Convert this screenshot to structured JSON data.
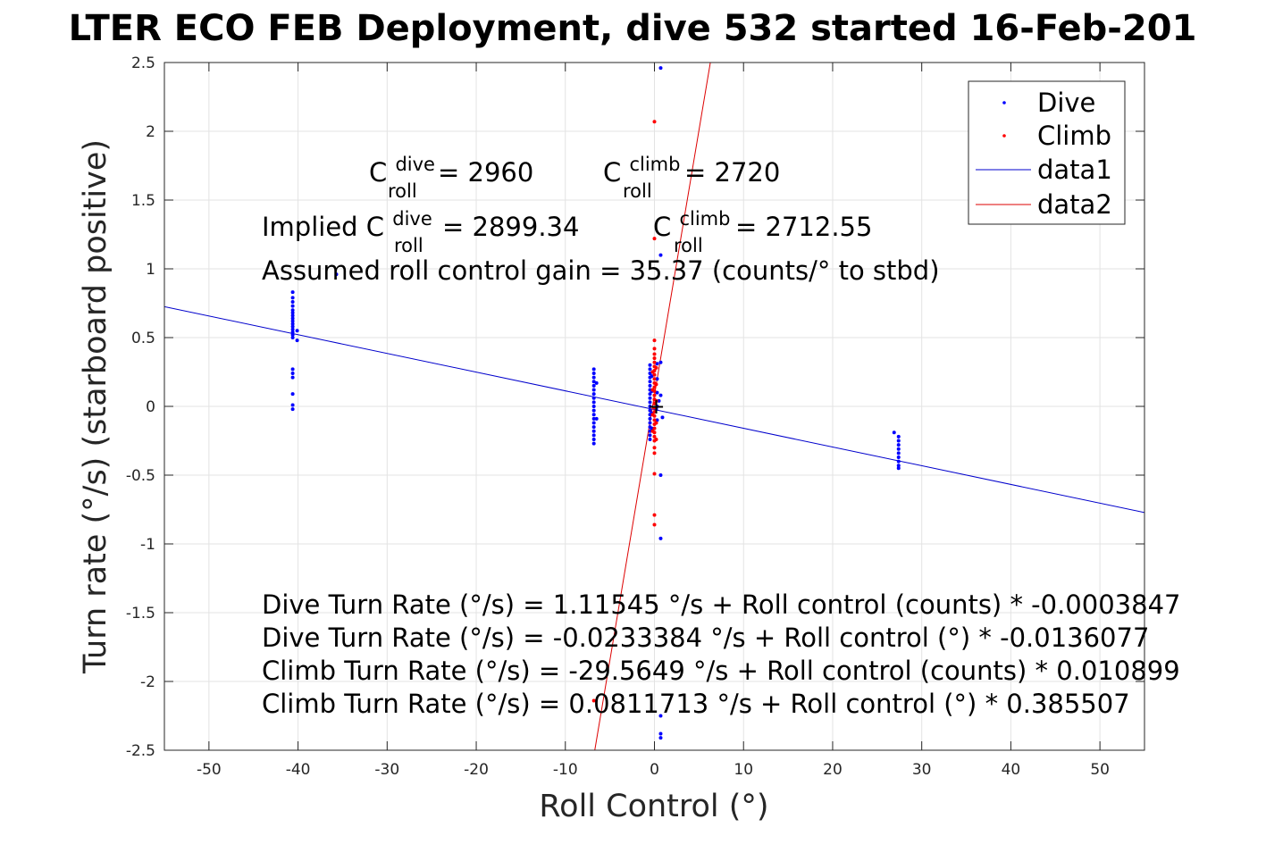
{
  "chart_data": {
    "type": "scatter",
    "title": "LTER ECO FEB Deployment, dive 532 started 16-Feb-201",
    "xlabel": "Roll Control (°)",
    "ylabel": "Turn rate (°/s) (starboard positive)",
    "xlim": [
      -55,
      55
    ],
    "ylim": [
      -2.5,
      2.5
    ],
    "xticks": [
      -50,
      -40,
      -30,
      -20,
      -10,
      0,
      10,
      20,
      30,
      40,
      50
    ],
    "yticks": [
      -2.5,
      -2,
      -1.5,
      -1,
      -0.5,
      0,
      0.5,
      1,
      1.5,
      2,
      2.5
    ],
    "grid": true,
    "legend_position": "top-right",
    "colors": {
      "dive": "#0000ff",
      "climb": "#ff0000",
      "data1": "#0000cc",
      "data2": "#dd0000",
      "marker": "#000000"
    },
    "legend": [
      {
        "label": "Dive",
        "kind": "point",
        "color": "#0000ff"
      },
      {
        "label": "Climb",
        "kind": "point",
        "color": "#ff0000"
      },
      {
        "label": "data1",
        "kind": "line",
        "color": "#0000cc"
      },
      {
        "label": "data2",
        "kind": "line",
        "color": "#dd0000"
      }
    ],
    "series": [
      {
        "name": "Dive",
        "color": "#0000ff",
        "points": [
          [
            -40.6,
            0.83
          ],
          [
            -40.6,
            0.79
          ],
          [
            -40.6,
            0.76
          ],
          [
            -40.6,
            0.73
          ],
          [
            -40.6,
            0.7
          ],
          [
            -40.6,
            0.68
          ],
          [
            -40.6,
            0.66
          ],
          [
            -40.6,
            0.64
          ],
          [
            -40.6,
            0.62
          ],
          [
            -40.6,
            0.6
          ],
          [
            -40.6,
            0.58
          ],
          [
            -40.6,
            0.56
          ],
          [
            -40.6,
            0.54
          ],
          [
            -40.6,
            0.52
          ],
          [
            -40.6,
            0.5
          ],
          [
            -40.1,
            0.48
          ],
          [
            -40.1,
            0.55
          ],
          [
            -40.6,
            0.27
          ],
          [
            -40.6,
            0.24
          ],
          [
            -40.6,
            0.21
          ],
          [
            -40.6,
            0.09
          ],
          [
            -40.6,
            0.01
          ],
          [
            -40.6,
            -0.02
          ],
          [
            -35.7,
            0.96
          ],
          [
            -6.8,
            0.27
          ],
          [
            -6.8,
            0.24
          ],
          [
            -6.8,
            0.21
          ],
          [
            -6.8,
            0.18
          ],
          [
            -6.8,
            0.15
          ],
          [
            -6.8,
            0.12
          ],
          [
            -6.8,
            0.09
          ],
          [
            -6.8,
            0.06
          ],
          [
            -6.8,
            0.03
          ],
          [
            -6.8,
            0.0
          ],
          [
            -6.8,
            -0.03
          ],
          [
            -6.8,
            -0.06
          ],
          [
            -6.8,
            -0.09
          ],
          [
            -6.8,
            -0.12
          ],
          [
            -6.8,
            -0.15
          ],
          [
            -6.8,
            -0.18
          ],
          [
            -6.8,
            -0.21
          ],
          [
            -6.8,
            -0.24
          ],
          [
            -6.8,
            -0.27
          ],
          [
            -6.5,
            0.17
          ],
          [
            -6.5,
            -0.09
          ],
          [
            -0.5,
            0.3
          ],
          [
            -0.5,
            0.27
          ],
          [
            -0.5,
            0.24
          ],
          [
            -0.5,
            0.21
          ],
          [
            -0.5,
            0.18
          ],
          [
            -0.5,
            0.15
          ],
          [
            -0.5,
            0.12
          ],
          [
            -0.5,
            0.09
          ],
          [
            -0.5,
            0.06
          ],
          [
            -0.5,
            0.03
          ],
          [
            -0.5,
            0.0
          ],
          [
            -0.5,
            -0.03
          ],
          [
            -0.5,
            -0.06
          ],
          [
            -0.5,
            -0.09
          ],
          [
            -0.5,
            -0.12
          ],
          [
            -0.5,
            -0.15
          ],
          [
            -0.5,
            -0.18
          ],
          [
            -0.5,
            -0.21
          ],
          [
            -0.5,
            -0.24
          ],
          [
            -0.3,
            0.22
          ],
          [
            -0.3,
            0.11
          ],
          [
            -0.3,
            -0.05
          ],
          [
            -0.3,
            -0.16
          ],
          [
            0.3,
            0.31
          ],
          [
            0.3,
            0.2
          ],
          [
            0.3,
            0.1
          ],
          [
            0.3,
            0.0
          ],
          [
            0.3,
            -0.1
          ],
          [
            0.7,
            2.46
          ],
          [
            0.7,
            1.1
          ],
          [
            0.7,
            0.32
          ],
          [
            0.7,
            0.08
          ],
          [
            0.7,
            -0.5
          ],
          [
            0.7,
            -0.96
          ],
          [
            0.9,
            -0.08
          ],
          [
            0.7,
            -2.25
          ],
          [
            0.7,
            -2.38
          ],
          [
            0.7,
            -2.41
          ],
          [
            0.2,
            -0.02
          ],
          [
            0.5,
            0.04
          ],
          [
            26.9,
            -0.19
          ],
          [
            27.4,
            -0.22
          ],
          [
            27.4,
            -0.25
          ],
          [
            27.4,
            -0.28
          ],
          [
            27.4,
            -0.31
          ],
          [
            27.4,
            -0.34
          ],
          [
            27.4,
            -0.37
          ],
          [
            27.4,
            -0.4
          ],
          [
            27.4,
            -0.43
          ],
          [
            27.4,
            -0.45
          ]
        ]
      },
      {
        "name": "Climb",
        "color": "#ff0000",
        "points": [
          [
            0.0,
            2.07
          ],
          [
            0.0,
            1.22
          ],
          [
            0.0,
            0.48
          ],
          [
            0.0,
            0.42
          ],
          [
            0.0,
            0.38
          ],
          [
            0.0,
            0.35
          ],
          [
            0.0,
            0.32
          ],
          [
            0.0,
            0.29
          ],
          [
            0.0,
            0.26
          ],
          [
            0.0,
            0.23
          ],
          [
            0.0,
            0.2
          ],
          [
            0.0,
            0.17
          ],
          [
            0.0,
            0.14
          ],
          [
            0.0,
            0.11
          ],
          [
            0.0,
            0.08
          ],
          [
            0.0,
            0.05
          ],
          [
            0.0,
            0.02
          ],
          [
            0.0,
            -0.01
          ],
          [
            0.0,
            -0.04
          ],
          [
            0.0,
            -0.07
          ],
          [
            0.0,
            -0.1
          ],
          [
            0.0,
            -0.13
          ],
          [
            0.0,
            -0.16
          ],
          [
            0.0,
            -0.19
          ],
          [
            0.0,
            -0.22
          ],
          [
            0.0,
            -0.25
          ],
          [
            0.0,
            -0.3
          ],
          [
            0.0,
            -0.34
          ],
          [
            -0.2,
            0.25
          ],
          [
            -0.2,
            0.12
          ],
          [
            -0.2,
            -0.06
          ],
          [
            -0.2,
            -0.18
          ],
          [
            0.2,
            0.28
          ],
          [
            0.2,
            0.16
          ],
          [
            0.2,
            0.04
          ],
          [
            0.2,
            -0.12
          ],
          [
            0.2,
            -0.24
          ],
          [
            0.0,
            -0.49
          ],
          [
            0.0,
            -0.79
          ],
          [
            0.0,
            -0.86
          ],
          [
            -6.8,
            -2.14
          ]
        ]
      }
    ],
    "fit_lines": [
      {
        "name": "data1",
        "color": "#0000cc",
        "intercept": -0.0233384,
        "slope": -0.0136077
      },
      {
        "name": "data2",
        "color": "#dd0000",
        "intercept": 0.0811713,
        "slope": 0.385507
      }
    ],
    "annotations": {
      "c_roll_dive": {
        "base": "C",
        "sup": "dive",
        "sub": "roll",
        "value": " = 2960"
      },
      "c_roll_climb": {
        "base": "C",
        "sup": "climb",
        "sub": "roll",
        "value": " = 2720"
      },
      "implied_dive": {
        "prefix": "Implied ",
        "base": "C",
        "sup": "dive",
        "sub": "roll",
        "value": " = 2899.34"
      },
      "implied_climb": {
        "base": "C",
        "sup": "climb",
        "sub": "roll",
        "value": " = 2712.55"
      },
      "gain": "Assumed roll control gain = 35.37 (counts/° to stbd)",
      "eq1": "Dive Turn Rate (°/s) = 1.11545 °/s + Roll control (counts) * -0.0003847",
      "eq2": "Dive Turn Rate (°/s) = -0.0233384 °/s + Roll control (°) * -0.0136077",
      "eq3": "Climb Turn Rate (°/s) = -29.5649 °/s + Roll control (counts) * 0.010899",
      "eq4": "Climb Turn Rate (°/s) = 0.0811713 °/s + Roll control (°) * 0.385507"
    },
    "marker": {
      "symbol": "+",
      "x": 0.2,
      "y": 0.0
    }
  }
}
